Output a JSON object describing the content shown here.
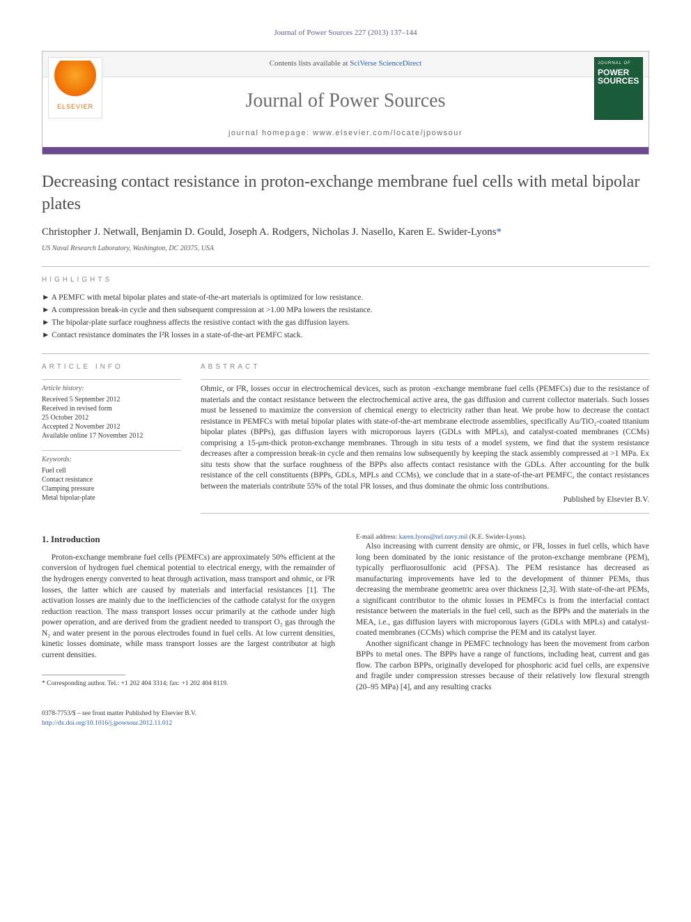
{
  "citation": "Journal of Power Sources 227 (2013) 137–144",
  "header": {
    "contents_prefix": "Contents lists available at ",
    "contents_link": "SciVerse ScienceDirect",
    "journal_title": "Journal of Power Sources",
    "homepage_label": "journal homepage: ",
    "homepage_url": "www.elsevier.com/locate/jpowsour",
    "publisher_logo_label": "ELSEVIER",
    "cover_small": "JOURNAL OF",
    "cover_main": "POWER SOURCES",
    "bar_color": "#6b4a8f",
    "cover_bg": "#1a5c3a"
  },
  "article": {
    "title": "Decreasing contact resistance in proton-exchange membrane fuel cells with metal bipolar plates",
    "authors": "Christopher J. Netwall, Benjamin D. Gould, Joseph A. Rodgers, Nicholas J. Nasello, Karen E. Swider-Lyons",
    "corr_marker": "*",
    "affiliation": "US Naval Research Laboratory, Washington, DC 20375, USA"
  },
  "highlights": {
    "label": "HIGHLIGHTS",
    "items": [
      "A PEMFC with metal bipolar plates and state-of-the-art materials is optimized for low resistance.",
      "A compression break-in cycle and then subsequent compression at >1.00 MPa lowers the resistance.",
      "The bipolar-plate surface roughness affects the resistive contact with the gas diffusion layers.",
      "Contact resistance dominates the I²R losses in a state-of-the-art PEMFC stack."
    ]
  },
  "article_info": {
    "label": "ARTICLE INFO",
    "history_head": "Article history:",
    "history": [
      "Received 5 September 2012",
      "Received in revised form",
      "25 October 2012",
      "Accepted 2 November 2012",
      "Available online 17 November 2012"
    ],
    "keywords_head": "Keywords:",
    "keywords": [
      "Fuel cell",
      "Contact resistance",
      "Clamping pressure",
      "Metal bipolar-plate"
    ]
  },
  "abstract": {
    "label": "ABSTRACT",
    "text": "Ohmic, or I²R, losses occur in electrochemical devices, such as proton -exchange membrane fuel cells (PEMFCs) due to the resistance of materials and the contact resistance between the electrochemical active area, the gas diffusion and current collector materials. Such losses must be lessened to maximize the conversion of chemical energy to electricity rather than heat. We probe how to decrease the contact resistance in PEMFCs with metal bipolar plates with state-of-the-art membrane electrode assemblies, specifically Au/TiO₂-coated titanium bipolar plates (BPPs), gas diffusion layers with microporous layers (GDLs with MPLs), and catalyst-coated membranes (CCMs) comprising a 15-μm-thick proton-exchange membranes. Through in situ tests of a model system, we find that the system resistance decreases after a compression break-in cycle and then remains low subsequently by keeping the stack assembly compressed at >1 MPa. Ex situ tests show that the surface roughness of the BPPs also affects contact resistance with the GDLs. After accounting for the bulk resistance of the cell constituents (BPPs, GDLs, MPLs and CCMs), we conclude that in a state-of-the-art PEMFC, the contact resistances between the materials contribute 55% of the total I²R losses, and thus dominate the ohmic loss contributions.",
    "publisher": "Published by Elsevier B.V."
  },
  "body": {
    "section_title": "1. Introduction",
    "para1": "Proton-exchange membrane fuel cells (PEMFCs) are approximately 50% efficient at the conversion of hydrogen fuel chemical potential to electrical energy, with the remainder of the hydrogen energy converted to heat through activation, mass transport and ohmic, or I²R losses, the latter which are caused by materials and interfacial resistances [1]. The activation losses are mainly due to the inefficiencies of the cathode catalyst for the oxygen reduction reaction. The mass transport losses occur primarily at the cathode under high power operation, and are derived from the gradient needed to transport O₂ gas through the N₂ and water present in the porous electrodes found in fuel cells. At low current densities, kinetic losses dominate, while mass transport losses are the largest contributor at high current densities.",
    "para2": "Also increasing with current density are ohmic, or I²R, losses in fuel cells, which have long been dominated by the ionic resistance of the proton-exchange membrane (PEM), typically perfluorosulfonic acid (PFSA). The PEM resistance has decreased as manufacturing improvements have led to the development of thinner PEMs, thus decreasing the membrane geometric area over thickness [2,3]. With state-of-the-art PEMs, a significant contributor to the ohmic losses in PEMFCs is from the interfacial contact resistance between the materials in the fuel cell, such as the BPPs and the materials in the MEA, i.e., gas diffusion layers with microporous layers (GDLs with MPLs) and catalyst-coated membranes (CCMs) which comprise the PEM and its catalyst layer.",
    "para3": "Another significant change in PEMFC technology has been the movement from carbon BPPs to metal ones. The BPPs have a range of functions, including heat, current and gas flow. The carbon BPPs, originally developed for phosphoric acid fuel cells, are expensive and fragile under compression stresses because of their relatively low flexural strength (20–95 MPa) [4], and any resulting cracks"
  },
  "footnote": {
    "corr_label": "* Corresponding author. Tel.: +1 202 404 3314; fax: +1 202 404 8119.",
    "email_label": "E-mail address: ",
    "email": "karen.lyons@nrl.navy.mil",
    "email_suffix": " (K.E. Swider-Lyons)."
  },
  "bottom": {
    "issn": "0378-7753/$ – see front matter Published by Elsevier B.V.",
    "doi": "http://dx.doi.org/10.1016/j.jpowsour.2012.11.012"
  },
  "colors": {
    "link": "#2a5db0",
    "text": "#333333",
    "muted": "#6b6b6b"
  }
}
